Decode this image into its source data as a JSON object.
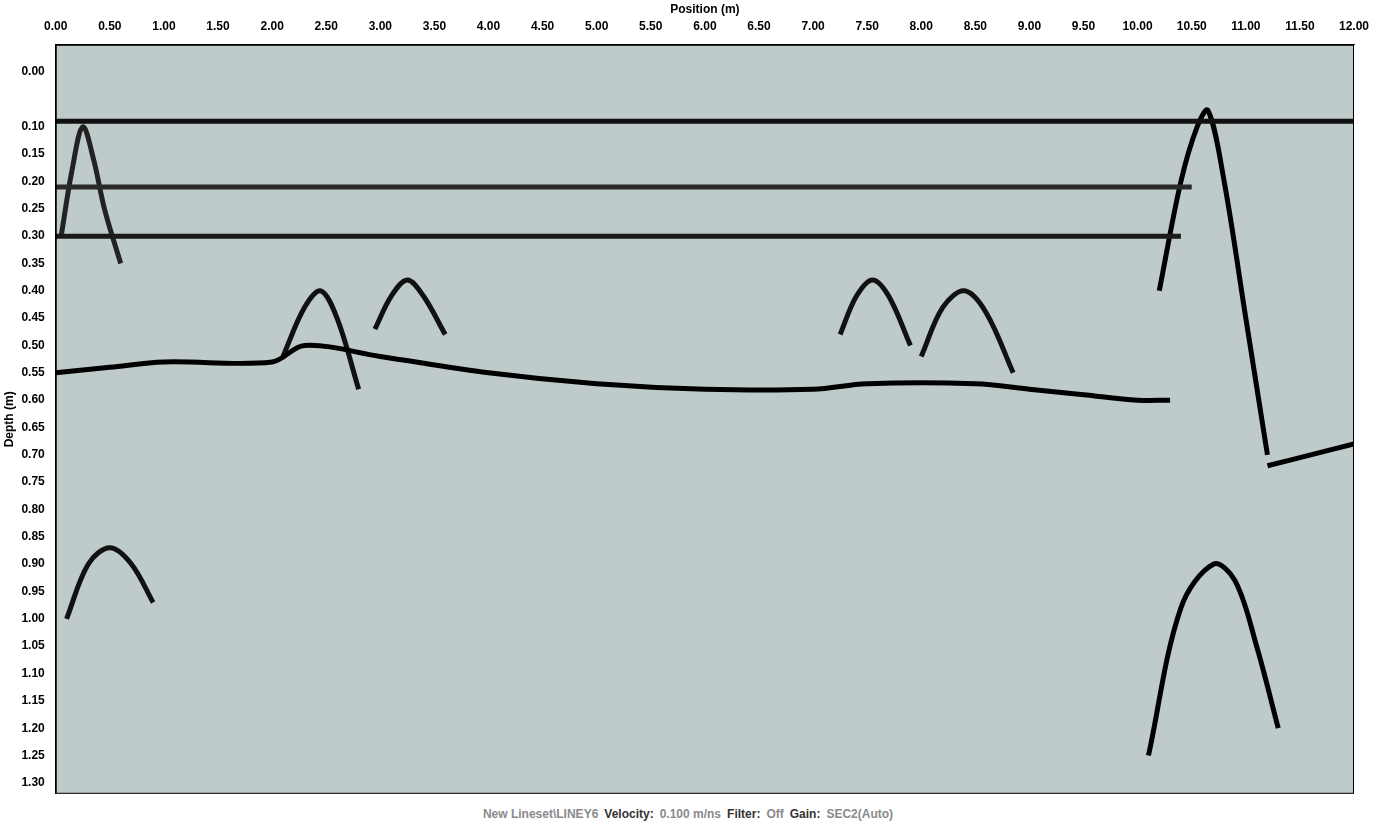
{
  "chart_data": {
    "type": "line",
    "x_label": "Position (m)",
    "y_label": "Depth (m)",
    "xlim": [
      0,
      12
    ],
    "ylim": [
      -0.05,
      1.32
    ],
    "xticks": [
      {
        "value": 0,
        "label": "0.00"
      },
      {
        "value": 0.5,
        "label": "0.50"
      },
      {
        "value": 1,
        "label": "1.00"
      },
      {
        "value": 1.5,
        "label": "1.50"
      },
      {
        "value": 2,
        "label": "2.00"
      },
      {
        "value": 2.5,
        "label": "2.50"
      },
      {
        "value": 3,
        "label": "3.00"
      },
      {
        "value": 3.5,
        "label": "3.50"
      },
      {
        "value": 4,
        "label": "4.00"
      },
      {
        "value": 4.5,
        "label": "4.50"
      },
      {
        "value": 5,
        "label": "5.00"
      },
      {
        "value": 5.5,
        "label": "5.50"
      },
      {
        "value": 6,
        "label": "6.00"
      },
      {
        "value": 6.5,
        "label": "6.50"
      },
      {
        "value": 7,
        "label": "7.00"
      },
      {
        "value": 7.5,
        "label": "7.50"
      },
      {
        "value": 8,
        "label": "8.00"
      },
      {
        "value": 8.5,
        "label": "8.50"
      },
      {
        "value": 9,
        "label": "9.00"
      },
      {
        "value": 9.5,
        "label": "9.50"
      },
      {
        "value": 10,
        "label": "10.00"
      },
      {
        "value": 10.5,
        "label": "10.50"
      },
      {
        "value": 11,
        "label": "11.00"
      },
      {
        "value": 11.5,
        "label": "11.50"
      },
      {
        "value": 12,
        "label": "12.00"
      }
    ],
    "yticks": [
      {
        "value": 0,
        "label": "0.00"
      },
      {
        "value": 0.1,
        "label": "0.10"
      },
      {
        "value": 0.15,
        "label": "0.15"
      },
      {
        "value": 0.2,
        "label": "0.20"
      },
      {
        "value": 0.25,
        "label": "0.25"
      },
      {
        "value": 0.3,
        "label": "0.30"
      },
      {
        "value": 0.35,
        "label": "0.35"
      },
      {
        "value": 0.4,
        "label": "0.40"
      },
      {
        "value": 0.45,
        "label": "0.45"
      },
      {
        "value": 0.5,
        "label": "0.50"
      },
      {
        "value": 0.55,
        "label": "0.55"
      },
      {
        "value": 0.6,
        "label": "0.60"
      },
      {
        "value": 0.65,
        "label": "0.65"
      },
      {
        "value": 0.7,
        "label": "0.70"
      },
      {
        "value": 0.75,
        "label": "0.75"
      },
      {
        "value": 0.8,
        "label": "0.80"
      },
      {
        "value": 0.85,
        "label": "0.85"
      },
      {
        "value": 0.9,
        "label": "0.90"
      },
      {
        "value": 0.95,
        "label": "0.95"
      },
      {
        "value": 1,
        "label": "1.00"
      },
      {
        "value": 1.05,
        "label": "1.05"
      },
      {
        "value": 1.1,
        "label": "1.10"
      },
      {
        "value": 1.15,
        "label": "1.15"
      },
      {
        "value": 1.2,
        "label": "1.20"
      },
      {
        "value": 1.25,
        "label": "1.25"
      },
      {
        "value": 1.3,
        "label": "1.30"
      }
    ],
    "grid": false,
    "marker": "none",
    "series": [
      {
        "x": [
          0,
          12
        ],
        "values": [
          0.09,
          0.09
        ],
        "color": "#111111"
      },
      {
        "x": [
          0,
          10.5
        ],
        "values": [
          0.21,
          0.21
        ],
        "color": "#2a2a2a"
      },
      {
        "x": [
          0,
          10.4
        ],
        "values": [
          0.3,
          0.3
        ],
        "color": "#1a1a1a"
      },
      {
        "x": [
          0,
          0.5,
          1,
          2,
          2.3,
          3,
          4,
          5,
          6,
          7,
          7.5,
          8.5,
          9,
          9.5,
          10,
          10.3
        ],
        "values": [
          0.55,
          0.54,
          0.53,
          0.53,
          0.5,
          0.52,
          0.55,
          0.57,
          0.58,
          0.58,
          0.57,
          0.57,
          0.58,
          0.59,
          0.6,
          0.6
        ],
        "color": "#000000"
      },
      {
        "x": [
          11.2,
          11.6,
          12
        ],
        "values": [
          0.72,
          0.7,
          0.68
        ],
        "color": "#000000"
      },
      {
        "x": [
          0.05,
          0.15,
          0.25,
          0.35,
          0.45,
          0.6
        ],
        "values": [
          0.3,
          0.18,
          0.1,
          0.16,
          0.25,
          0.35
        ],
        "color": "#222222"
      },
      {
        "x": [
          0.1,
          0.3,
          0.5,
          0.7,
          0.9
        ],
        "values": [
          1.0,
          0.9,
          0.87,
          0.9,
          0.97
        ],
        "color": "#111111"
      },
      {
        "x": [
          2.1,
          2.3,
          2.45,
          2.6,
          2.8
        ],
        "values": [
          0.52,
          0.43,
          0.4,
          0.45,
          0.58
        ],
        "color": "#111111"
      },
      {
        "x": [
          2.95,
          3.1,
          3.25,
          3.4,
          3.6
        ],
        "values": [
          0.47,
          0.41,
          0.38,
          0.41,
          0.48
        ],
        "color": "#111111"
      },
      {
        "x": [
          7.25,
          7.4,
          7.55,
          7.7,
          7.9
        ],
        "values": [
          0.48,
          0.41,
          0.38,
          0.41,
          0.5
        ],
        "color": "#111111"
      },
      {
        "x": [
          8.0,
          8.2,
          8.4,
          8.6,
          8.85
        ],
        "values": [
          0.52,
          0.43,
          0.4,
          0.44,
          0.55
        ],
        "color": "#111111"
      },
      {
        "x": [
          10.2,
          10.4,
          10.55,
          10.65,
          10.8,
          11.0,
          11.2
        ],
        "values": [
          0.4,
          0.2,
          0.1,
          0.07,
          0.2,
          0.45,
          0.7
        ],
        "color": "#000000"
      },
      {
        "x": [
          10.1,
          10.4,
          10.7,
          10.9,
          11.1,
          11.3
        ],
        "values": [
          1.25,
          0.98,
          0.9,
          0.93,
          1.05,
          1.2
        ],
        "color": "#000000"
      }
    ]
  },
  "footer": {
    "lineset": "New Lineset\\LINEY6",
    "items": [
      {
        "label": "Velocity:",
        "value": "0.100 m/ns"
      },
      {
        "label": "Filter:",
        "value": "Off"
      },
      {
        "label": "Gain:",
        "value": "SEC2(Auto)"
      }
    ]
  }
}
